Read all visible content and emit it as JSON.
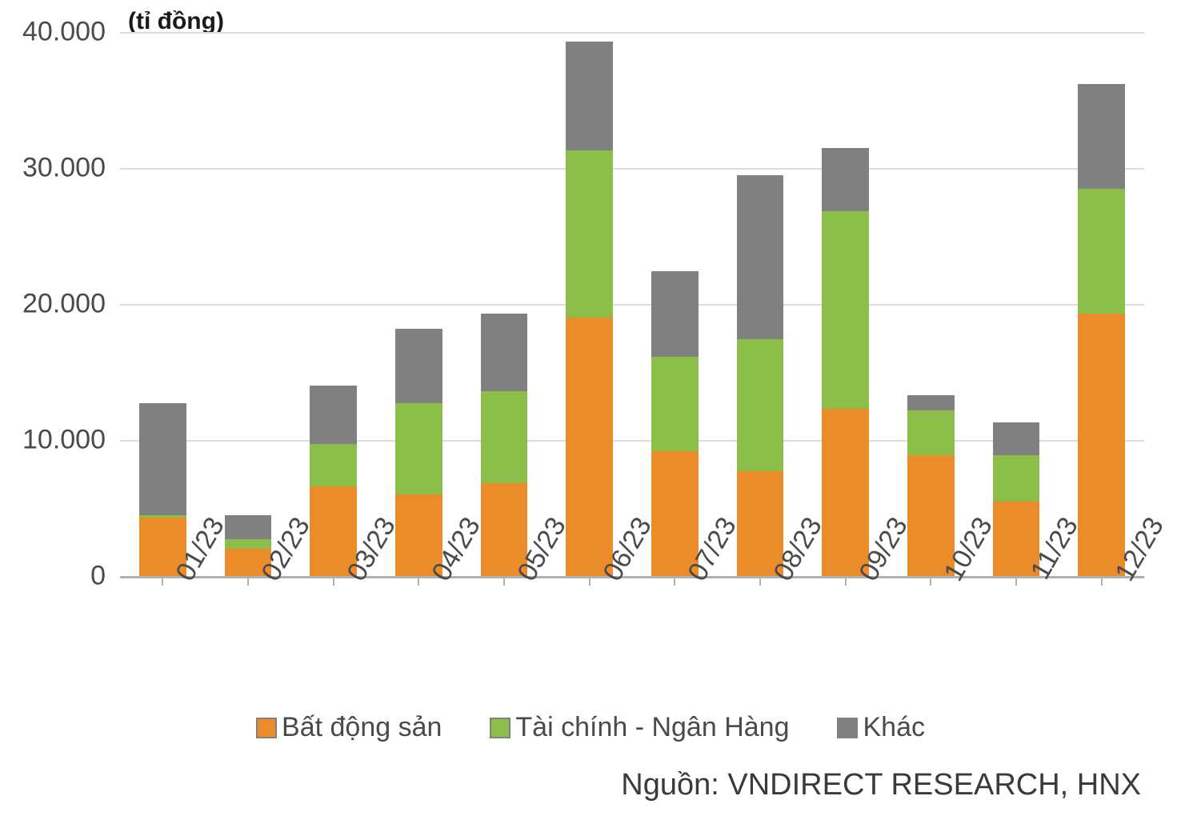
{
  "chart": {
    "type": "stacked-bar",
    "unit_label": "(tỉ đồng)",
    "unit_label_fontsize": 30,
    "tick_fontsize": 34,
    "source_fontsize": 38,
    "text_color": "#4a4a4a",
    "background_color": "#ffffff",
    "grid_color": "#dcdcdc",
    "axis_color": "#b0b0b0",
    "ylim": [
      0,
      40000
    ],
    "ytick_step": 10000,
    "ytick_labels": [
      "0",
      "10.000",
      "20.000",
      "30.000",
      "40.000"
    ],
    "categories": [
      "01/23",
      "02/23",
      "03/23",
      "04/23",
      "05/23",
      "06/23",
      "07/23",
      "08/23",
      "09/23",
      "10/23",
      "11/23",
      "12/23"
    ],
    "series": [
      {
        "key": "bat_dong_san",
        "label": "Bất động sản",
        "color": "#ec8b2a"
      },
      {
        "key": "tai_chinh_ngan_hang",
        "label": "Tài chính - Ngân Hàng",
        "color": "#8bbf4a"
      },
      {
        "key": "khac",
        "label": "Khác",
        "color": "#808080"
      }
    ],
    "data": [
      {
        "bat_dong_san": 4300,
        "tai_chinh_ngan_hang": 200,
        "khac": 8200
      },
      {
        "bat_dong_san": 2000,
        "tai_chinh_ngan_hang": 700,
        "khac": 1800
      },
      {
        "bat_dong_san": 6600,
        "tai_chinh_ngan_hang": 3100,
        "khac": 4300
      },
      {
        "bat_dong_san": 6000,
        "tai_chinh_ngan_hang": 6700,
        "khac": 5500
      },
      {
        "bat_dong_san": 6800,
        "tai_chinh_ngan_hang": 6800,
        "khac": 5700
      },
      {
        "bat_dong_san": 19000,
        "tai_chinh_ngan_hang": 12300,
        "khac": 8000
      },
      {
        "bat_dong_san": 9200,
        "tai_chinh_ngan_hang": 6900,
        "khac": 6300
      },
      {
        "bat_dong_san": 7700,
        "tai_chinh_ngan_hang": 9700,
        "khac": 12100
      },
      {
        "bat_dong_san": 12300,
        "tai_chinh_ngan_hang": 14500,
        "khac": 4700
      },
      {
        "bat_dong_san": 8900,
        "tai_chinh_ngan_hang": 3300,
        "khac": 1100
      },
      {
        "bat_dong_san": 5500,
        "tai_chinh_ngan_hang": 3400,
        "khac": 2400
      },
      {
        "bat_dong_san": 19300,
        "tai_chinh_ngan_hang": 9200,
        "khac": 7700
      }
    ],
    "bar_width_ratio": 0.55,
    "x_label_rotation_deg": -60,
    "legend_swatch_border": "#808080",
    "source_text": "Nguồn: VNDIRECT RESEARCH, HNX"
  }
}
